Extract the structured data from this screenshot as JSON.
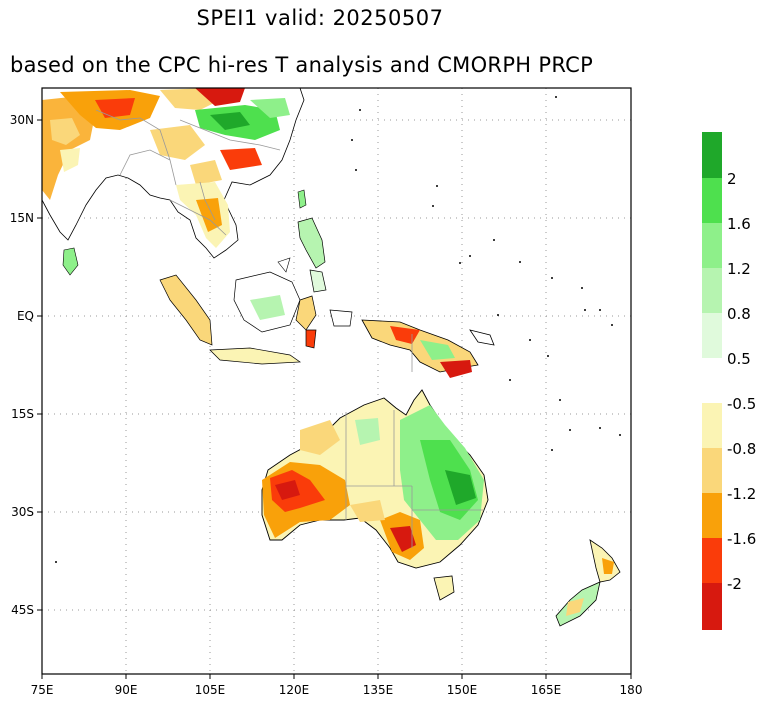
{
  "title": "SPEI1   valid: 20250507",
  "subtitle": "based on the CPC hi-res T analysis and CMORPH PRCP",
  "axes": {
    "x_ticks": [
      "75E",
      "90E",
      "105E",
      "120E",
      "135E",
      "150E",
      "165E",
      "180"
    ],
    "y_ticks": [
      "30N",
      "15N",
      "EQ",
      "15S",
      "30S",
      "45S"
    ]
  },
  "colorbar": {
    "wet_labels": [
      "2",
      "1.6",
      "1.2",
      "0.8",
      "0.5"
    ],
    "dry_labels": [
      "-0.5",
      "-0.8",
      "-1.2",
      "-1.6",
      "-2"
    ],
    "wet_colors": [
      "#1fa82a",
      "#4ee04e",
      "#8ef08a",
      "#b6f4b0",
      "#e0fadc"
    ],
    "dry_colors": [
      "#fbf4b4",
      "#fad77a",
      "#f9a10a",
      "#fa3c0a",
      "#d7190f"
    ]
  }
}
